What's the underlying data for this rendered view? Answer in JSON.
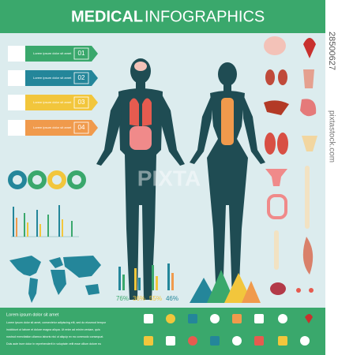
{
  "header": {
    "title_bold": "MEDICAL",
    "title_light": "INFOGRAPHICS"
  },
  "steps": [
    {
      "number": "01",
      "text": "Lorem ipsum dolor sit amet"
    },
    {
      "number": "02",
      "text": "Lorem ipsum dolor sit amet"
    },
    {
      "number": "03",
      "text": "Lorem ipsum dolor sit amet"
    },
    {
      "number": "04",
      "text": "Lorem ipsum dolor sit amet"
    }
  ],
  "stats": {
    "percents": [
      "76%",
      "36%",
      "55%",
      "46%"
    ]
  },
  "footer": {
    "heading": "Lorem ipsum dolor sit amet",
    "lines": [
      "Lorem ipsum dolor sit amet, consectetur adipiscing elit, sed do eiusmod tempor",
      "incididunt ut labore et dolore magna aliqua. Ut enim ad minim veniam, quis",
      "nostrud exercitation ullamco laboris nisi ut aliquip ex ea commodo consequat.",
      "Duis aute irure dolor in reprehenderit in voluptate velit esse cillum dolore eu"
    ]
  },
  "watermark": {
    "brand": "PIXTA",
    "id": "28500627",
    "site": "pixtastock.com"
  }
}
